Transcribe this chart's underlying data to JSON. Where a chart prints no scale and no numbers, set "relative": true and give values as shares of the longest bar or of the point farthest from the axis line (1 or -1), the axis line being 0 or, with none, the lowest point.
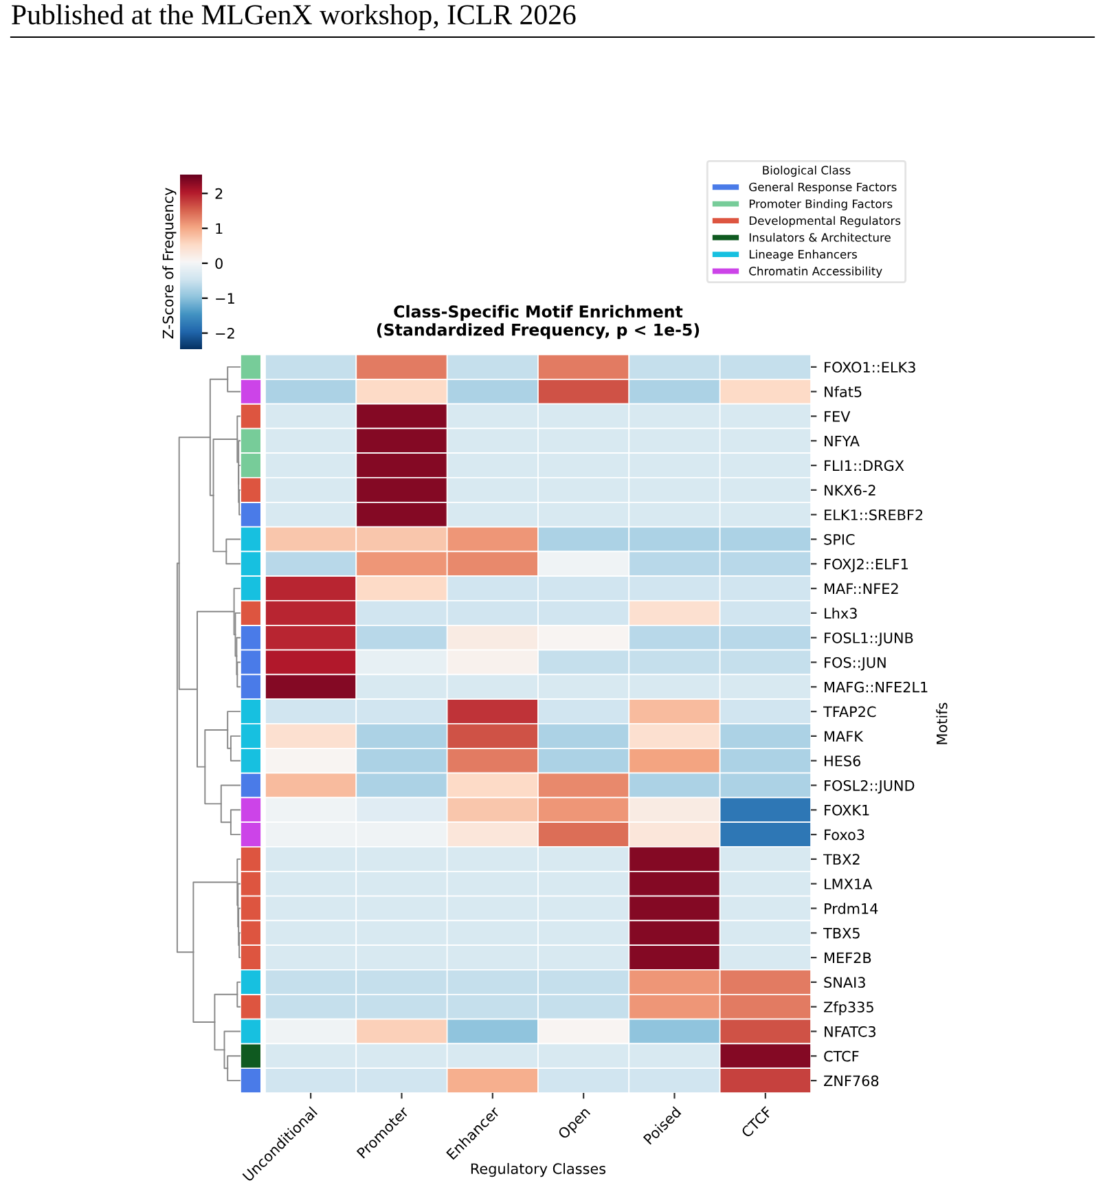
{
  "chart_data": [
    {
      "type": "heatmap",
      "title": "Class-Specific Motif Enrichment\n(Standardized Frequency, p < 1e-5)",
      "xlabel": "Regulatory Classes",
      "ylabel": "Motifs",
      "clabel": "Z-Score of Frequency",
      "annotations": [
        "Published at the MLGenX workshop, ICLR 2026"
      ],
      "categories": [
        "Unconditional",
        "Promoter",
        "Enhancer",
        "Open",
        "Poised",
        "CTCF"
      ],
      "y_categories": [
        "FOXO1::ELK3",
        "Nfat5",
        "FEV",
        "NFYA",
        "FLI1::DRGX",
        "NKX6-2",
        "ELK1::SREBF2",
        "SPIC",
        "FOXJ2::ELF1",
        "MAF::NFE2",
        "Lhx3",
        "FOSL1::JUNB",
        "FOS::JUN",
        "MAFG::NFE2L1",
        "TFAP2C",
        "MAFK",
        "HES6",
        "FOSL2::JUND",
        "FOXK1",
        "Foxo3",
        "TBX2",
        "LMX1A",
        "Prdm14",
        "TBX5",
        "MEF2B",
        "SNAI3",
        "Zfp335",
        "NFATC3",
        "CTCF",
        "ZNF768"
      ],
      "cells": [
        [
          -0.6,
          1.3,
          -0.6,
          1.3,
          -0.6,
          -0.6
        ],
        [
          -0.8,
          0.5,
          -0.8,
          1.6,
          -0.8,
          0.5
        ],
        [
          -0.4,
          2.3,
          -0.4,
          -0.4,
          -0.4,
          -0.4
        ],
        [
          -0.4,
          2.3,
          -0.4,
          -0.4,
          -0.4,
          -0.4
        ],
        [
          -0.4,
          2.3,
          -0.4,
          -0.4,
          -0.4,
          -0.4
        ],
        [
          -0.4,
          2.3,
          -0.4,
          -0.4,
          -0.4,
          -0.4
        ],
        [
          -0.4,
          2.3,
          -0.4,
          -0.4,
          -0.4,
          -0.4
        ],
        [
          0.7,
          0.7,
          1.1,
          -0.8,
          -0.8,
          -0.8
        ],
        [
          -0.7,
          1.1,
          1.2,
          -0.1,
          -0.7,
          -0.7
        ],
        [
          1.9,
          0.5,
          -0.5,
          -0.5,
          -0.5,
          -0.5
        ],
        [
          1.9,
          -0.5,
          -0.5,
          -0.5,
          0.4,
          -0.5
        ],
        [
          1.9,
          -0.7,
          0.2,
          0.05,
          -0.7,
          -0.7
        ],
        [
          2.0,
          -0.2,
          0.1,
          -0.6,
          -0.6,
          -0.6
        ],
        [
          2.3,
          -0.4,
          -0.4,
          -0.4,
          -0.4,
          -0.4
        ],
        [
          -0.5,
          -0.5,
          1.8,
          -0.5,
          0.8,
          -0.5
        ],
        [
          0.4,
          -0.8,
          1.6,
          -0.8,
          0.4,
          -0.8
        ],
        [
          0.05,
          -0.8,
          1.3,
          -0.8,
          1.0,
          -0.8
        ],
        [
          0.8,
          -0.8,
          0.5,
          1.2,
          -0.8,
          -0.8
        ],
        [
          -0.1,
          -0.3,
          0.7,
          1.1,
          0.2,
          -1.8
        ],
        [
          -0.1,
          -0.1,
          0.3,
          1.4,
          0.3,
          -1.8
        ],
        [
          -0.4,
          -0.4,
          -0.4,
          -0.4,
          2.3,
          -0.4
        ],
        [
          -0.4,
          -0.4,
          -0.4,
          -0.4,
          2.3,
          -0.4
        ],
        [
          -0.4,
          -0.4,
          -0.4,
          -0.4,
          2.3,
          -0.4
        ],
        [
          -0.4,
          -0.4,
          -0.4,
          -0.4,
          2.3,
          -0.4
        ],
        [
          -0.4,
          -0.4,
          -0.4,
          -0.4,
          2.3,
          -0.4
        ],
        [
          -0.6,
          -0.6,
          -0.6,
          -0.6,
          1.1,
          1.3
        ],
        [
          -0.6,
          -0.6,
          -0.6,
          -0.6,
          1.1,
          1.3
        ],
        [
          -0.1,
          0.6,
          -1.0,
          0.05,
          -1.0,
          1.6
        ],
        [
          -0.4,
          -0.4,
          -0.4,
          -0.4,
          -0.4,
          2.3
        ],
        [
          -0.5,
          -0.5,
          0.9,
          -0.5,
          -0.5,
          1.7
        ]
      ],
      "clim": [
        -2.5,
        2.5
      ],
      "cticks": [
        -2,
        -1,
        0,
        1,
        2
      ],
      "grid": false
    },
    {
      "type": "bar",
      "orientation": "horizontal",
      "stacked": true,
      "relative": true,
      "categories": [
        null,
        null,
        null,
        null,
        null,
        null,
        null,
        null,
        null,
        null,
        null,
        null,
        null,
        null,
        null,
        null,
        null,
        null,
        null,
        null,
        null,
        null,
        null,
        null,
        null,
        null,
        null,
        null,
        null,
        null
      ],
      "legend_title": "Biological Class",
      "legend": "top right",
      "series": [
        {
          "name": "General Response Factors",
          "color": "#4a7be8",
          "values": [
            null,
            null,
            null,
            null,
            null,
            null,
            1,
            null,
            null,
            null,
            null,
            1,
            1,
            1,
            null,
            null,
            null,
            1,
            null,
            null,
            null,
            null,
            null,
            null,
            null,
            null,
            null,
            null,
            null,
            1
          ]
        },
        {
          "name": "Promoter Binding Factors",
          "color": "#77cc99",
          "values": [
            1,
            null,
            null,
            1,
            1,
            null,
            null,
            null,
            null,
            null,
            null,
            null,
            null,
            null,
            null,
            null,
            null,
            null,
            null,
            null,
            null,
            null,
            null,
            null,
            null,
            null,
            null,
            null,
            null,
            null
          ]
        },
        {
          "name": "Developmental Regulators",
          "color": "#dd5540",
          "values": [
            null,
            null,
            1,
            null,
            null,
            1,
            null,
            null,
            null,
            null,
            1,
            null,
            null,
            null,
            null,
            null,
            null,
            null,
            null,
            null,
            1,
            1,
            1,
            1,
            1,
            null,
            1,
            null,
            null,
            null
          ]
        },
        {
          "name": "Insulators & Architecture",
          "color": "#0f5a20",
          "values": [
            null,
            null,
            null,
            null,
            null,
            null,
            null,
            null,
            null,
            null,
            null,
            null,
            null,
            null,
            null,
            null,
            null,
            null,
            null,
            null,
            null,
            null,
            null,
            null,
            null,
            null,
            null,
            null,
            1,
            null
          ]
        },
        {
          "name": "Lineage Enhancers",
          "color": "#17c0e0",
          "values": [
            null,
            null,
            null,
            null,
            null,
            null,
            null,
            1,
            1,
            1,
            null,
            null,
            null,
            null,
            1,
            1,
            1,
            null,
            null,
            null,
            null,
            null,
            null,
            null,
            null,
            1,
            null,
            1,
            null,
            null
          ]
        },
        {
          "name": "Chromatin Accessibility",
          "color": "#cc44e8",
          "values": [
            null,
            1,
            null,
            null,
            null,
            null,
            null,
            null,
            null,
            null,
            null,
            null,
            null,
            null,
            null,
            null,
            null,
            null,
            1,
            1,
            null,
            null,
            null,
            null,
            null,
            null,
            null,
            null,
            null,
            null
          ]
        }
      ]
    }
  ]
}
